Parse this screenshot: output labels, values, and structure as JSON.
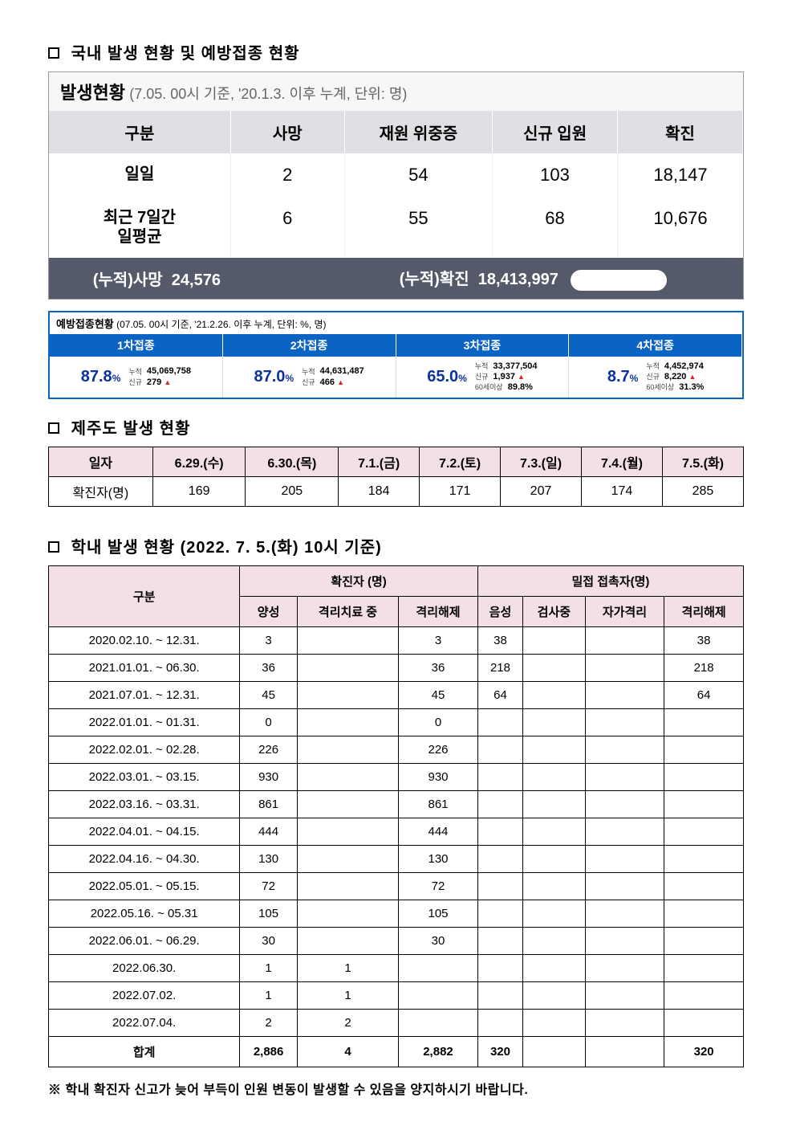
{
  "colors": {
    "panel_bg": "#f7f7fa",
    "panel_header_bg": "#e0e0e4",
    "panel_footer_bg": "#555a6b",
    "vax_border": "#0b63c4",
    "vax_header_bg": "#0b63c4",
    "vax_pct_color": "#0b329a",
    "pink_header_bg": "#f3dfe8",
    "triangle_up": "#d22222"
  },
  "section1": {
    "title": "국내 발생 현황 및 예방접종 현황",
    "status": {
      "title": "발생현황",
      "subtitle": "(7.05. 00시 기준, '20.1.3. 이후 누계, 단위: 명)",
      "headers": [
        "구분",
        "사망",
        "재원 위중증",
        "신규 입원",
        "확진"
      ],
      "rows": [
        {
          "label": "일일",
          "vals": [
            "2",
            "54",
            "103",
            "18,147"
          ]
        },
        {
          "label": "최근 7일간\n일평균",
          "vals": [
            "6",
            "55",
            "68",
            "10,676"
          ]
        }
      ],
      "footer": {
        "left_label": "(누적)사망",
        "left_value": "24,576",
        "right_label": "(누적)확진",
        "right_value": "18,413,997"
      }
    },
    "vax": {
      "title": "예방접종현황",
      "subtitle": "(07.05. 00시 기준, '21.2.26. 이후 누계, 단위: %, 명)",
      "doses": [
        {
          "label": "1차접종",
          "pct": "87.8",
          "sub": [
            {
              "lbl": "누적",
              "val": "45,069,758"
            },
            {
              "lbl": "신규",
              "val": "279",
              "up": true
            }
          ]
        },
        {
          "label": "2차접종",
          "pct": "87.0",
          "sub": [
            {
              "lbl": "누적",
              "val": "44,631,487"
            },
            {
              "lbl": "신규",
              "val": "466",
              "up": true
            }
          ]
        },
        {
          "label": "3차접종",
          "pct": "65.0",
          "sub": [
            {
              "lbl": "누적",
              "val": "33,377,504"
            },
            {
              "lbl": "신규",
              "val": "1,937",
              "up": true
            },
            {
              "lbl": "60세이상",
              "val": "89.8%"
            }
          ]
        },
        {
          "label": "4차접종",
          "pct": "8.7",
          "sub": [
            {
              "lbl": "누적",
              "val": "4,452,974"
            },
            {
              "lbl": "신규",
              "val": "8,220",
              "up": true
            },
            {
              "lbl": "60세이상",
              "val": "31.3%"
            }
          ]
        }
      ]
    }
  },
  "section2": {
    "title": "제주도 발생 현황",
    "row_labels": [
      "일자",
      "확진자(명)"
    ],
    "dates": [
      "6.29.(수)",
      "6.30.(목)",
      "7.1.(금)",
      "7.2.(토)",
      "7.3.(일)",
      "7.4.(월)",
      "7.5.(화)"
    ],
    "counts": [
      "169",
      "205",
      "184",
      "171",
      "207",
      "174",
      "285"
    ]
  },
  "section3": {
    "title": "학내 발생 현황 (2022. 7. 5.(화) 10시 기준)",
    "headers": {
      "group_label": "구분",
      "confirmed_group": "확진자 (명)",
      "contact_group": "밀접 접촉자(명)",
      "confirmed_sub": [
        "양성",
        "격리치료 중",
        "격리해제"
      ],
      "contact_sub": [
        "음성",
        "검사중",
        "자가격리",
        "격리해제"
      ]
    },
    "rows": [
      {
        "period": "2020.02.10. ~ 12.31.",
        "c": [
          "3",
          "",
          "3"
        ],
        "x": [
          "38",
          "",
          "",
          "38"
        ]
      },
      {
        "period": "2021.01.01. ~ 06.30.",
        "c": [
          "36",
          "",
          "36"
        ],
        "x": [
          "218",
          "",
          "",
          "218"
        ]
      },
      {
        "period": "2021.07.01. ~ 12.31.",
        "c": [
          "45",
          "",
          "45"
        ],
        "x": [
          "64",
          "",
          "",
          "64"
        ]
      },
      {
        "period": "2022.01.01. ~ 01.31.",
        "c": [
          "0",
          "",
          "0"
        ],
        "x": [
          "",
          "",
          "",
          ""
        ]
      },
      {
        "period": "2022.02.01. ~ 02.28.",
        "c": [
          "226",
          "",
          "226"
        ],
        "x": [
          "",
          "",
          "",
          ""
        ]
      },
      {
        "period": "2022.03.01. ~ 03.15.",
        "c": [
          "930",
          "",
          "930"
        ],
        "x": [
          "",
          "",
          "",
          ""
        ]
      },
      {
        "period": "2022.03.16. ~ 03.31.",
        "c": [
          "861",
          "",
          "861"
        ],
        "x": [
          "",
          "",
          "",
          ""
        ]
      },
      {
        "period": "2022.04.01. ~ 04.15.",
        "c": [
          "444",
          "",
          "444"
        ],
        "x": [
          "",
          "",
          "",
          ""
        ]
      },
      {
        "period": "2022.04.16. ~ 04.30.",
        "c": [
          "130",
          "",
          "130"
        ],
        "x": [
          "",
          "",
          "",
          ""
        ]
      },
      {
        "period": "2022.05.01. ~ 05.15.",
        "c": [
          "72",
          "",
          "72"
        ],
        "x": [
          "",
          "",
          "",
          ""
        ]
      },
      {
        "period": "2022.05.16. ~ 05.31",
        "c": [
          "105",
          "",
          "105"
        ],
        "x": [
          "",
          "",
          "",
          ""
        ]
      },
      {
        "period": "2022.06.01. ~ 06.29.",
        "c": [
          "30",
          "",
          "30"
        ],
        "x": [
          "",
          "",
          "",
          ""
        ]
      },
      {
        "period": "2022.06.30.",
        "c": [
          "1",
          "1",
          ""
        ],
        "x": [
          "",
          "",
          "",
          ""
        ]
      },
      {
        "period": "2022.07.02.",
        "c": [
          "1",
          "1",
          ""
        ],
        "x": [
          "",
          "",
          "",
          ""
        ]
      },
      {
        "period": "2022.07.04.",
        "c": [
          "2",
          "2",
          ""
        ],
        "x": [
          "",
          "",
          "",
          ""
        ]
      }
    ],
    "total": {
      "label": "합계",
      "c": [
        "2,886",
        "4",
        "2,882"
      ],
      "x": [
        "320",
        "",
        "",
        "320"
      ]
    },
    "footnote": "※ 학내 확진자 신고가 늦어 부득이 인원 변동이 발생할 수 있음을 양지하시기 바랍니다."
  }
}
